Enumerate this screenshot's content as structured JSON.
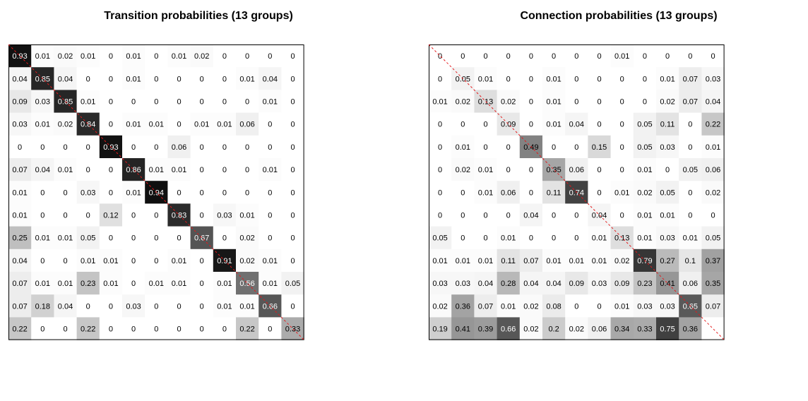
{
  "chart_data": [
    {
      "type": "heatmap",
      "title": "Transition probabilities (13 groups)",
      "xlabel": "",
      "ylabel": "",
      "colormap": "grayscale (0 = white, 1 = black)",
      "diagonal_line": true,
      "values": [
        [
          "0.93",
          "0.01",
          "0.02",
          "0.01",
          "0",
          "0.01",
          "0",
          "0.01",
          "0.02",
          "0",
          "0",
          "0",
          "0"
        ],
        [
          "0.04",
          "0.85",
          "0.04",
          "0",
          "0",
          "0.01",
          "0",
          "0",
          "0",
          "0",
          "0.01",
          "0.04",
          "0"
        ],
        [
          "0.09",
          "0.03",
          "0.85",
          "0.01",
          "0",
          "0",
          "0",
          "0",
          "0",
          "0",
          "0",
          "0.01",
          "0"
        ],
        [
          "0.03",
          "0.01",
          "0.02",
          "0.84",
          "0",
          "0.01",
          "0.01",
          "0",
          "0.01",
          "0.01",
          "0.06",
          "0",
          "0"
        ],
        [
          "0",
          "0",
          "0",
          "0",
          "0.93",
          "0",
          "0",
          "0.06",
          "0",
          "0",
          "0",
          "0",
          "0"
        ],
        [
          "0.07",
          "0.04",
          "0.01",
          "0",
          "0",
          "0.86",
          "0.01",
          "0.01",
          "0",
          "0",
          "0",
          "0.01",
          "0"
        ],
        [
          "0.01",
          "0",
          "0",
          "0.03",
          "0",
          "0.01",
          "0.94",
          "0",
          "0",
          "0",
          "0",
          "0",
          "0"
        ],
        [
          "0.01",
          "0",
          "0",
          "0",
          "0.12",
          "0",
          "0",
          "0.83",
          "0",
          "0.03",
          "0.01",
          "0",
          "0"
        ],
        [
          "0.25",
          "0.01",
          "0.01",
          "0.05",
          "0",
          "0",
          "0",
          "0",
          "0.67",
          "0",
          "0.02",
          "0",
          "0"
        ],
        [
          "0.04",
          "0",
          "0",
          "0.01",
          "0.01",
          "0",
          "0",
          "0.01",
          "0",
          "0.91",
          "0.02",
          "0.01",
          "0"
        ],
        [
          "0.07",
          "0.01",
          "0.01",
          "0.23",
          "0.01",
          "0",
          "0.01",
          "0.01",
          "0",
          "0.01",
          "0.56",
          "0.01",
          "0.05"
        ],
        [
          "0.07",
          "0.18",
          "0.04",
          "0",
          "0",
          "0.03",
          "0",
          "0",
          "0",
          "0.01",
          "0.01",
          "0.66",
          "0"
        ],
        [
          "0.22",
          "0",
          "0",
          "0.22",
          "0",
          "0",
          "0",
          "0",
          "0",
          "0",
          "0.22",
          "0",
          "0.33"
        ]
      ]
    },
    {
      "type": "heatmap",
      "title": "Connection probabilities (13 groups)",
      "xlabel": "",
      "ylabel": "",
      "colormap": "grayscale (0 = white, 1 = black)",
      "diagonal_line": true,
      "values": [
        [
          "0",
          "0",
          "0",
          "0",
          "0",
          "0",
          "0",
          "0",
          "0.01",
          "0",
          "0",
          "0",
          "0"
        ],
        [
          "0",
          "0.05",
          "0.01",
          "0",
          "0",
          "0.01",
          "0",
          "0",
          "0",
          "0",
          "0.01",
          "0.07",
          "0.03"
        ],
        [
          "0.01",
          "0.02",
          "0.13",
          "0.02",
          "0",
          "0.01",
          "0",
          "0",
          "0",
          "0",
          "0.02",
          "0.07",
          "0.04"
        ],
        [
          "0",
          "0",
          "0",
          "0.09",
          "0",
          "0.01",
          "0.04",
          "0",
          "0",
          "0.05",
          "0.11",
          "0",
          "0.22"
        ],
        [
          "0",
          "0.01",
          "0",
          "0",
          "0.49",
          "0",
          "0",
          "0.15",
          "0",
          "0.05",
          "0.03",
          "0",
          "0.01"
        ],
        [
          "0",
          "0.02",
          "0.01",
          "0",
          "0",
          "0.35",
          "0.06",
          "0",
          "0",
          "0.01",
          "0",
          "0.05",
          "0.06"
        ],
        [
          "0",
          "0",
          "0.01",
          "0.06",
          "0",
          "0.11",
          "0.74",
          "0",
          "0.01",
          "0.02",
          "0.05",
          "0",
          "0.02"
        ],
        [
          "0",
          "0",
          "0",
          "0",
          "0.04",
          "0",
          "0",
          "0.04",
          "0",
          "0.01",
          "0.01",
          "0",
          "0"
        ],
        [
          "0.05",
          "0",
          "0",
          "0.01",
          "0",
          "0",
          "0",
          "0.01",
          "0.13",
          "0.01",
          "0.03",
          "0.01",
          "0.05"
        ],
        [
          "0.01",
          "0.01",
          "0.01",
          "0.11",
          "0.07",
          "0.01",
          "0.01",
          "0.01",
          "0.02",
          "0.79",
          "0.27",
          "0.1",
          "0.37"
        ],
        [
          "0.03",
          "0.03",
          "0.04",
          "0.28",
          "0.04",
          "0.04",
          "0.09",
          "0.03",
          "0.09",
          "0.23",
          "0.41",
          "0.06",
          "0.35"
        ],
        [
          "0.02",
          "0.36",
          "0.07",
          "0.01",
          "0.02",
          "0.08",
          "0",
          "0",
          "0.01",
          "0.03",
          "0.03",
          "0.65",
          "0.07"
        ],
        [
          "0.19",
          "0.41",
          "0.39",
          "0.66",
          "0.02",
          "0.2",
          "0.02",
          "0.06",
          "0.34",
          "0.33",
          "0.75",
          "0.36",
          ""
        ]
      ]
    }
  ]
}
